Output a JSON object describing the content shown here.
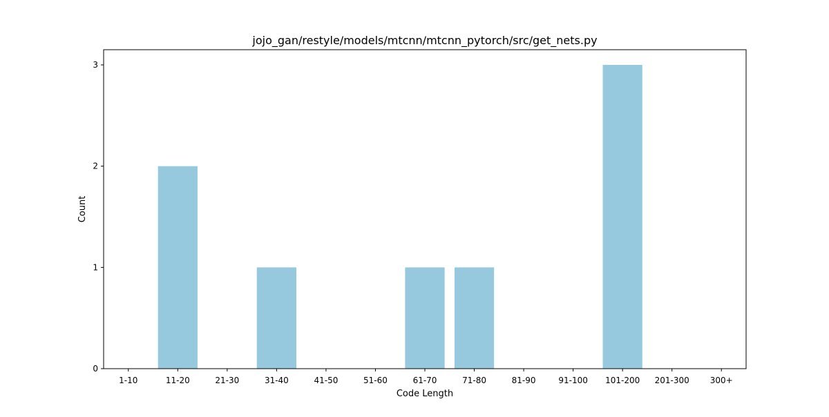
{
  "chart_data": {
    "type": "bar",
    "title": "jojo_gan/restyle/models/mtcnn/mtcnn_pytorch/src/get_nets.py",
    "xlabel": "Code Length",
    "ylabel": "Count",
    "categories": [
      "1-10",
      "11-20",
      "21-30",
      "31-40",
      "41-50",
      "51-60",
      "61-70",
      "71-80",
      "81-90",
      "91-100",
      "101-200",
      "201-300",
      "300+"
    ],
    "values": [
      0,
      2,
      0,
      1,
      0,
      0,
      1,
      1,
      0,
      0,
      3,
      0,
      0
    ],
    "yticks": [
      0,
      1,
      2,
      3
    ],
    "ylim": [
      0,
      3.15
    ],
    "grid": false,
    "bar_color": "#96c9de"
  }
}
